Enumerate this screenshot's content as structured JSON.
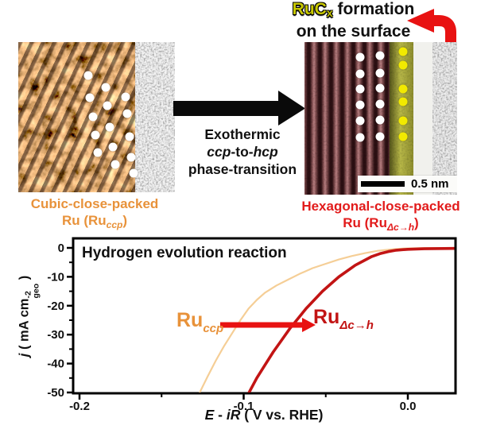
{
  "colors": {
    "orange_label": "#E8923A",
    "red_label": "#E21B1B",
    "yellow_rucx": "#C9C900",
    "curve_orange": "#F5CE96",
    "curve_red": "#C21414",
    "arrow_red": "#E81212",
    "arrow_black": "#0A0A0A"
  },
  "header": {
    "rucx_base": "RuC",
    "rucx_sub": "x",
    "formation": " formation",
    "line2": "on the surface"
  },
  "left_panel": {
    "caption_line1": "Cubic-close-packed",
    "caption_pre": "Ru (Ru",
    "caption_sub": "ccp",
    "caption_post": ")",
    "atom_dots": [
      [
        88,
        42
      ],
      [
        110,
        57
      ],
      [
        90,
        70
      ],
      [
        135,
        69
      ],
      [
        112,
        80
      ],
      [
        94,
        94
      ],
      [
        137,
        90
      ],
      [
        115,
        107
      ],
      [
        97,
        117
      ],
      [
        140,
        119
      ],
      [
        119,
        132
      ],
      [
        100,
        139
      ],
      [
        142,
        145
      ],
      [
        122,
        154
      ],
      [
        145,
        165
      ]
    ]
  },
  "right_panel": {
    "caption_line1": "Hexagonal-close-packed",
    "caption_pre": "Ru (Ru",
    "caption_sub": "Δc→h",
    "caption_post": ")",
    "white_dots": [
      [
        70,
        19
      ],
      [
        95,
        17
      ],
      [
        70,
        40
      ],
      [
        95,
        39
      ],
      [
        70,
        59
      ],
      [
        95,
        58
      ],
      [
        70,
        79
      ],
      [
        95,
        78
      ],
      [
        70,
        99
      ],
      [
        95,
        98
      ],
      [
        70,
        120
      ],
      [
        95,
        119
      ]
    ],
    "yellow_dots": [
      [
        124,
        12
      ],
      [
        124,
        29
      ],
      [
        124,
        59
      ],
      [
        124,
        75
      ],
      [
        124,
        99
      ],
      [
        124,
        119
      ]
    ],
    "scale_bar_label": "0.5 nm"
  },
  "transition": {
    "line1": "Exothermic",
    "ccp": "ccp",
    "mid": "-to-",
    "hcp": "hcp",
    "line3": "phase-transition"
  },
  "chart_data": {
    "type": "line",
    "title": "Hydrogen evolution reaction",
    "xlabel": {
      "e": "E",
      "sep": " - ",
      "ir": "iR",
      "rest": " ( V vs. RHE)"
    },
    "ylabel": {
      "j": "j",
      "pre": " ( mA cm",
      "sup": "-2",
      "sub": "geo",
      "post": " )"
    },
    "xlim": [
      -0.204,
      0.029
    ],
    "ylim": [
      -50.3,
      3.3
    ],
    "x_major_ticks": [
      {
        "v": -0.2,
        "label": "-0.2"
      },
      {
        "v": -0.1,
        "label": "-0.1"
      },
      {
        "v": 0,
        "label": "0.0"
      }
    ],
    "x_minor_ticks": [
      -0.15,
      -0.05
    ],
    "y_major_ticks": [
      {
        "v": 0,
        "label": "0"
      },
      {
        "v": -10,
        "label": "-10"
      },
      {
        "v": -20,
        "label": "-20"
      },
      {
        "v": -30,
        "label": "-30"
      },
      {
        "v": -40,
        "label": "-40"
      },
      {
        "v": -50,
        "label": "-50"
      }
    ],
    "y_minor_ticks": [
      -5,
      -15,
      -25,
      -35,
      -45
    ],
    "series": [
      {
        "name": "Ru_ccp",
        "color": "#F5CE96",
        "stroke_width": 2.2,
        "points": [
          [
            -0.127,
            -50.3
          ],
          [
            -0.122,
            -44.5
          ],
          [
            -0.117,
            -39
          ],
          [
            -0.112,
            -34
          ],
          [
            -0.107,
            -29.5
          ],
          [
            -0.102,
            -25
          ],
          [
            -0.097,
            -21
          ],
          [
            -0.092,
            -18
          ],
          [
            -0.087,
            -15.5
          ],
          [
            -0.08,
            -13
          ],
          [
            -0.073,
            -11
          ],
          [
            -0.066,
            -9
          ],
          [
            -0.058,
            -7
          ],
          [
            -0.05,
            -5.5
          ],
          [
            -0.042,
            -4
          ],
          [
            -0.034,
            -2.8
          ],
          [
            -0.026,
            -1.8
          ],
          [
            -0.018,
            -1
          ],
          [
            -0.01,
            -0.5
          ],
          [
            -0.002,
            -0.2
          ],
          [
            0.008,
            -0.05
          ],
          [
            0.029,
            0
          ]
        ]
      },
      {
        "name": "Ru_Δc→h",
        "color": "#C21414",
        "stroke_width": 3.6,
        "points": [
          [
            -0.097,
            -50.3
          ],
          [
            -0.092,
            -45
          ],
          [
            -0.087,
            -40.5
          ],
          [
            -0.082,
            -36
          ],
          [
            -0.077,
            -32
          ],
          [
            -0.072,
            -28
          ],
          [
            -0.067,
            -24.5
          ],
          [
            -0.062,
            -21
          ],
          [
            -0.057,
            -18
          ],
          [
            -0.052,
            -15
          ],
          [
            -0.047,
            -12.5
          ],
          [
            -0.042,
            -10
          ],
          [
            -0.037,
            -8
          ],
          [
            -0.032,
            -6
          ],
          [
            -0.027,
            -4.5
          ],
          [
            -0.022,
            -3
          ],
          [
            -0.017,
            -2
          ],
          [
            -0.012,
            -1.3
          ],
          [
            -0.007,
            -0.8
          ],
          [
            0,
            -0.5
          ],
          [
            0.01,
            -0.3
          ],
          [
            0.029,
            -0.2
          ]
        ]
      }
    ],
    "legend": {
      "ccp": {
        "pre": "Ru",
        "sub": "ccp"
      },
      "dch": {
        "pre": "Ru",
        "sub": "Δc→h"
      },
      "arrow_color": "#E81212"
    }
  }
}
